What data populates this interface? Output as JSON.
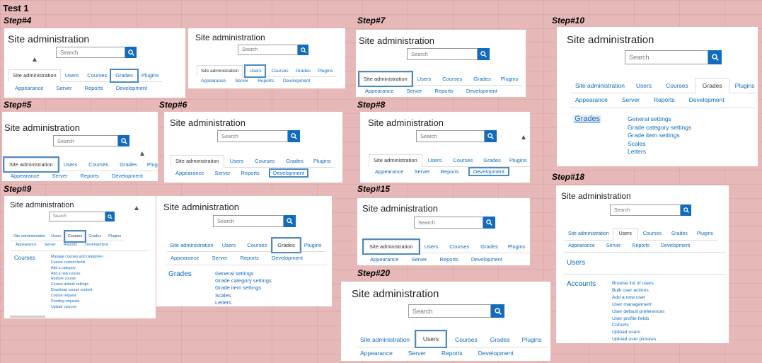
{
  "sheet_title": "Test 1",
  "common": {
    "site_title": "Site administration",
    "search_placeholder": "Search",
    "tabs": [
      "Site administration",
      "Users",
      "Courses",
      "Grades",
      "Plugins"
    ],
    "row2": [
      "Appearance",
      "Server",
      "Reports",
      "Development"
    ]
  },
  "steps": {
    "s4": "Step#4",
    "s5": "Step#5",
    "s6": "Step#6",
    "s7": "Step#7",
    "s8": "Step#8",
    "s9": "Step#9",
    "s10": "Step#10",
    "s15": "Step#15",
    "s18": "Step#18",
    "s20": "Step#20"
  },
  "grades_section": {
    "title": "Grades",
    "links": [
      "General settings",
      "Grade category settings",
      "Grade item settings",
      "Scales",
      "Letters"
    ]
  },
  "courses_section": {
    "title": "Courses",
    "links": [
      "Manage courses and categories",
      "Course custom fields",
      "Add a category",
      "Add a new course",
      "Restore course",
      "Course default settings",
      "Download course content",
      "Course request",
      "Pending requests",
      "Upload courses"
    ]
  },
  "users_section": {
    "users_title": "Users",
    "accounts_title": "Accounts",
    "links": [
      "Browse list of users",
      "Bulk user actions",
      "Add a new user",
      "User management",
      "User default preferences",
      "User profile fields",
      "Cohorts",
      "Upload users",
      "Upload user pictures"
    ]
  },
  "colors": {
    "link": "#0f6cbf",
    "highlight": "#4a8ac4",
    "background": "#e6b8b7"
  },
  "icons": {
    "search": "search-icon"
  }
}
